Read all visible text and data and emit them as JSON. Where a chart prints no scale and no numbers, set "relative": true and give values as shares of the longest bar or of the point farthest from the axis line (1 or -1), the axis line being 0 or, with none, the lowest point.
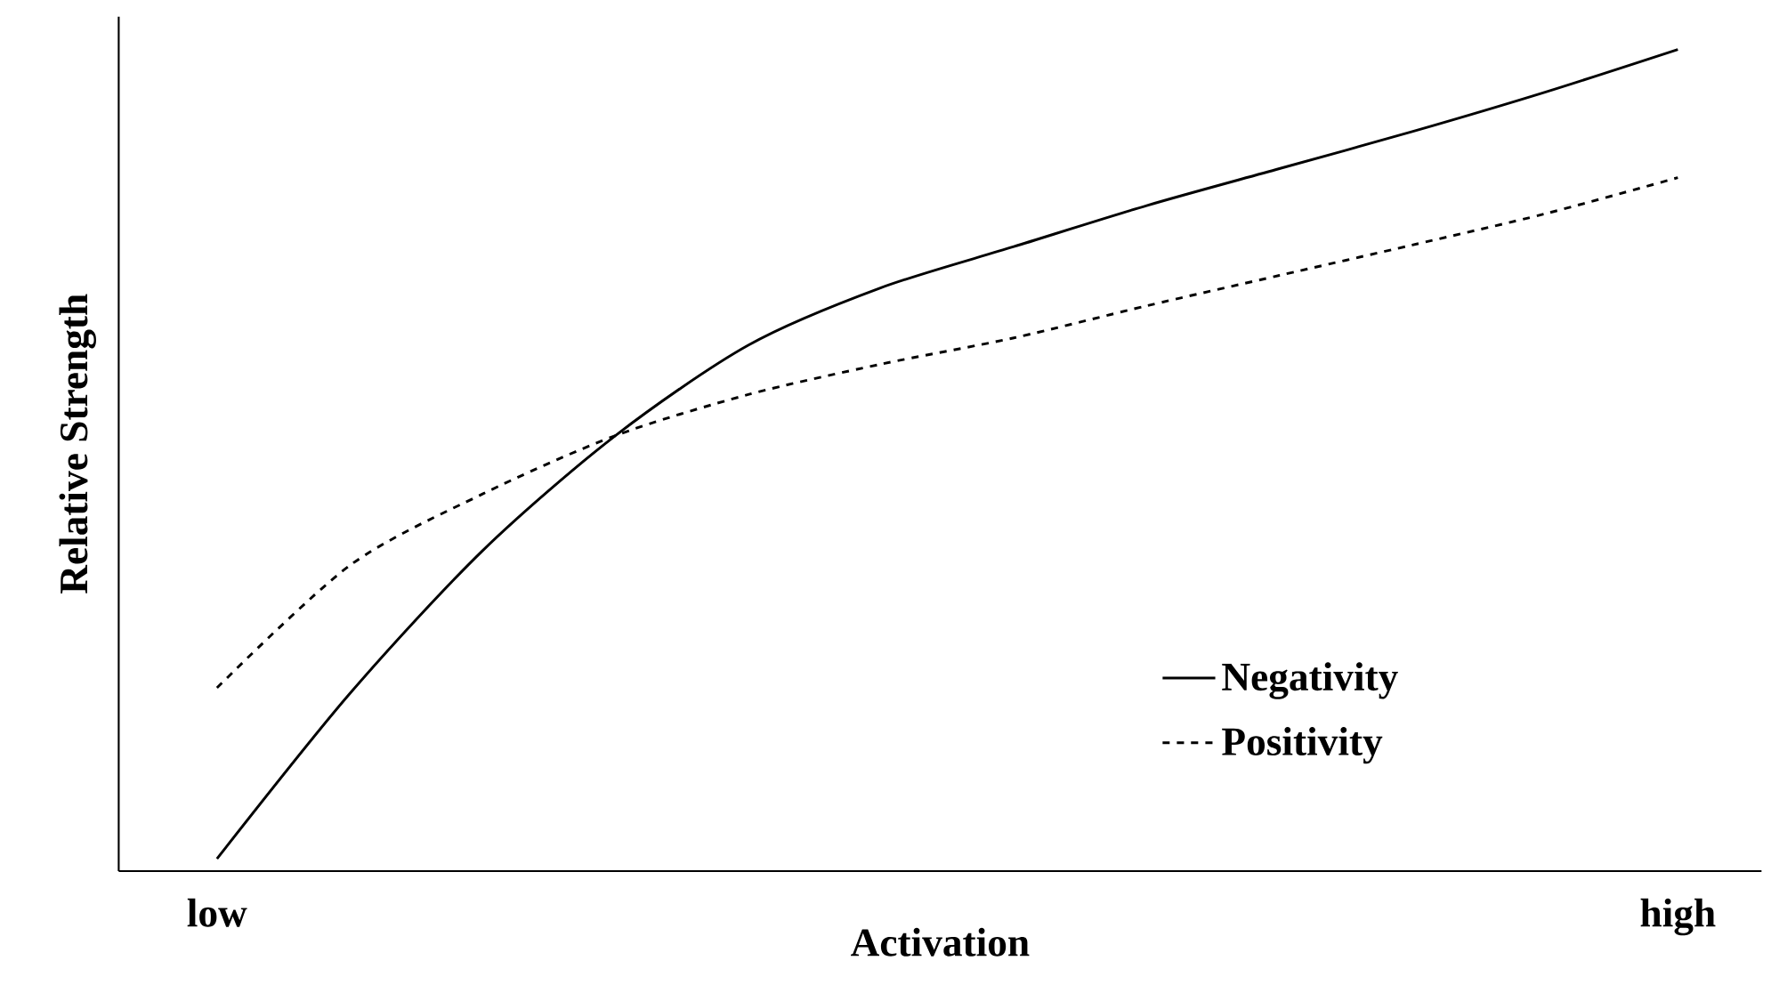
{
  "chart_data": {
    "type": "line",
    "relative": true,
    "xlabel": "Activation",
    "ylabel": "Relative Strength",
    "categories": [
      "low",
      null,
      null,
      null,
      null,
      null,
      null,
      null,
      null,
      null,
      null,
      "high"
    ],
    "series": [
      {
        "name": "Negativity",
        "color": "#000000",
        "line_style": "solid",
        "values": [
          0.015,
          0.216,
          0.39,
          0.53,
          0.64,
          0.71,
          0.76,
          0.81,
          0.855,
          0.9,
          0.948,
          1
        ]
      },
      {
        "name": "Positivity",
        "color": "#000000",
        "line_style": "dashed",
        "values": [
          0.223,
          0.372,
          0.459,
          0.53,
          0.58,
          0.617,
          0.649,
          0.688,
          0.725,
          0.762,
          0.8,
          0.844
        ]
      }
    ],
    "legend": "bottom right",
    "grid": false,
    "marker": "none"
  }
}
